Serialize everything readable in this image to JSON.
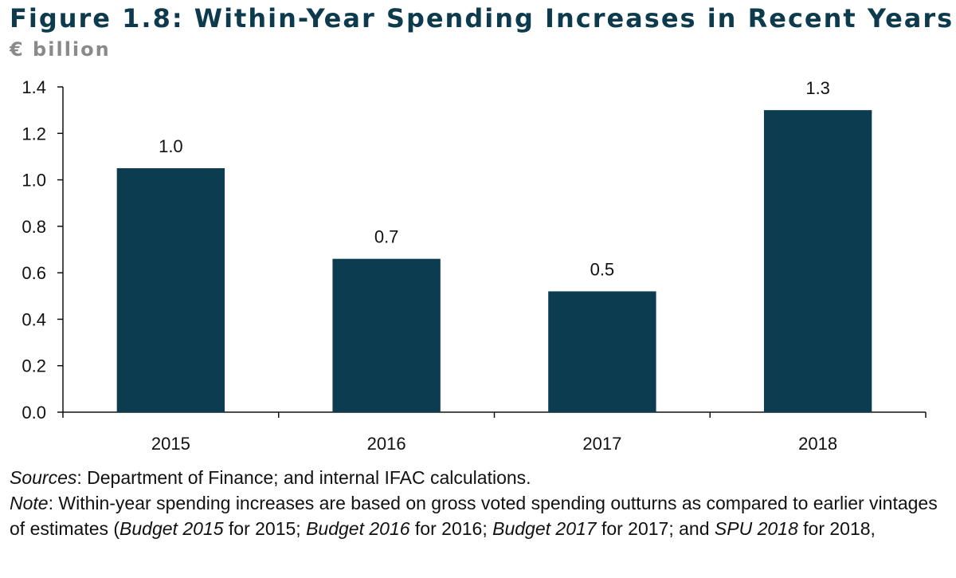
{
  "chart_data": {
    "type": "bar",
    "title": "Figure 1.8: Within-Year Spending Increases in Recent Years",
    "ylabel": "€ billion",
    "xlabel": "",
    "categories": [
      "2015",
      "2016",
      "2017",
      "2018"
    ],
    "values": [
      1.05,
      0.66,
      0.52,
      1.3
    ],
    "data_labels": [
      "1.0",
      "0.7",
      "0.5",
      "1.3"
    ],
    "ylim": [
      0,
      1.4
    ],
    "yticks": [
      "0.0",
      "0.2",
      "0.4",
      "0.6",
      "0.8",
      "1.0",
      "1.2",
      "1.4"
    ],
    "grid": false,
    "bar_color": "#0b3c4f"
  },
  "notes": {
    "sources_label": "Sources",
    "sources_text": ": Department of Finance; and internal IFAC calculations.",
    "note_label": "Note",
    "note_text_1": ": Within-year spending increases are based on gross voted spending outturns as compared to earlier vintages of estimates (",
    "b2015": "Budget 2015",
    "t2015": " for 2015; ",
    "b2016": "Budget 2016",
    "t2016": " for 2016; ",
    "b2017": "Budget 2017",
    "t2017": " for 2017; and ",
    "spu": "SPU 2018",
    "t2018": " for 2018,"
  }
}
